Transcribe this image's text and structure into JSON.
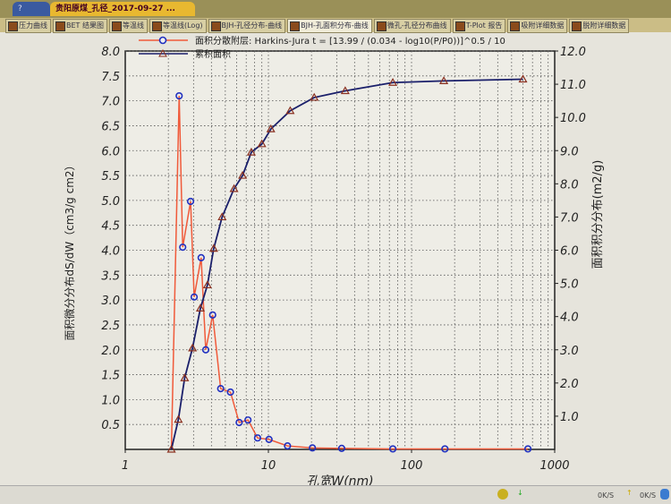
{
  "window": {
    "tabs": [
      {
        "label": "?",
        "active": false
      },
      {
        "label": "贵阳原煤_孔径_2017-09-27 ...",
        "active": true
      }
    ],
    "subtabs": [
      {
        "label": "压力曲线"
      },
      {
        "label": "BET 结果图"
      },
      {
        "label": "等温线"
      },
      {
        "label": "等温线(Log)"
      },
      {
        "label": "BJH-孔径分布-曲线"
      },
      {
        "label": "BJH-孔面积分布-曲线",
        "active": true
      },
      {
        "label": "微孔-孔径分布曲线"
      },
      {
        "label": "T-Plot 报告"
      },
      {
        "label": "吸附详细数据"
      },
      {
        "label": "脱附详细数据"
      }
    ]
  },
  "status_bar": {
    "download": "0K/S",
    "upload": "0K/S"
  },
  "chart_data": {
    "type": "line",
    "xlabel": "孔宽W(nm)",
    "ylabel": "面积微分分布dS/dW（cm3/g cm2）",
    "y2label": "面积积分分布(m2/g)",
    "xscale": "log",
    "xlim": [
      1,
      1000
    ],
    "ylim": [
      0,
      8
    ],
    "y2lim": [
      0,
      12
    ],
    "xticks": [
      "1",
      "10",
      "100",
      "1000"
    ],
    "yticks": [
      "0.5",
      "1.0",
      "1.5",
      "2.0",
      "2.5",
      "3.0",
      "3.5",
      "4.0",
      "4.5",
      "5.0",
      "5.5",
      "6.0",
      "6.5",
      "7.0",
      "7.5",
      "8.0"
    ],
    "y2ticks": [
      "1.0",
      "2.0",
      "3.0",
      "4.0",
      "5.0",
      "6.0",
      "7.0",
      "8.0",
      "9.0",
      "10.0",
      "11.0",
      "12.0"
    ],
    "grid": true,
    "legend_position": "top-left",
    "series": [
      {
        "name": "面积分散附层: Harkins-Jura t = [13.99 / (0.034 - log10(P/P0))]^0.5 / 10",
        "axis": "left",
        "color": "#f05a3a",
        "marker": "circle",
        "marker_color": "#2030c0",
        "x": [
          2.1,
          2.38,
          2.52,
          2.86,
          3.03,
          3.39,
          3.65,
          4.08,
          4.64,
          5.43,
          6.25,
          7.2,
          8.4,
          10.1,
          13.6,
          20.3,
          32.5,
          74,
          171,
          650
        ],
        "y": [
          0,
          7.1,
          4.06,
          4.98,
          3.06,
          3.85,
          2.0,
          2.7,
          1.22,
          1.15,
          0.54,
          0.59,
          0.23,
          0.2,
          0.07,
          0.03,
          0.02,
          0.01,
          0.01,
          0.01
        ]
      },
      {
        "name": "累积面积",
        "axis": "right",
        "color": "#1a1f6a",
        "marker": "triangle",
        "marker_color": "#8a3020",
        "x": [
          2.1,
          2.35,
          2.6,
          2.95,
          3.35,
          3.75,
          4.15,
          4.75,
          5.75,
          6.6,
          7.6,
          9.0,
          10.4,
          14.2,
          20.9,
          34.4,
          74,
          168,
          600
        ],
        "y": [
          0,
          0.9,
          2.15,
          3.05,
          4.25,
          4.95,
          6.05,
          7.0,
          7.85,
          8.25,
          8.95,
          9.2,
          9.65,
          10.2,
          10.6,
          10.8,
          11.05,
          11.1,
          11.15
        ]
      }
    ]
  }
}
